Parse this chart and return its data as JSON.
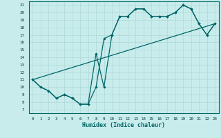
{
  "xlabel": "Humidex (Indice chaleur)",
  "background_color": "#c8ecec",
  "grid_color": "#b0d8d8",
  "line_color": "#006666",
  "xlim": [
    -0.5,
    23.5
  ],
  "ylim": [
    6.5,
    21.5
  ],
  "yticks": [
    7,
    8,
    9,
    10,
    11,
    12,
    13,
    14,
    15,
    16,
    17,
    18,
    19,
    20,
    21
  ],
  "xticks": [
    0,
    1,
    2,
    3,
    4,
    5,
    6,
    7,
    8,
    9,
    10,
    11,
    12,
    13,
    14,
    15,
    16,
    17,
    18,
    19,
    20,
    21,
    22,
    23
  ],
  "line1_x": [
    0,
    1,
    2,
    3,
    4,
    5,
    6,
    7,
    8,
    9,
    10,
    11,
    12,
    13,
    14,
    15,
    16,
    17,
    18,
    19,
    20,
    21,
    22,
    23
  ],
  "line1_y": [
    11.0,
    10.0,
    9.5,
    8.5,
    9.0,
    8.5,
    7.7,
    7.7,
    14.5,
    10.0,
    17.0,
    19.5,
    19.5,
    20.5,
    20.5,
    19.5,
    19.5,
    19.5,
    20.0,
    21.0,
    20.5,
    18.5,
    17.0,
    18.5
  ],
  "line2_x": [
    0,
    1,
    2,
    3,
    4,
    5,
    6,
    7,
    8,
    9,
    10,
    11,
    12,
    13,
    14,
    15,
    16,
    17,
    18,
    19,
    20,
    21,
    22,
    23
  ],
  "line2_y": [
    11.0,
    10.0,
    9.5,
    8.5,
    9.0,
    8.5,
    7.7,
    7.7,
    10.0,
    16.5,
    17.0,
    19.5,
    19.5,
    20.5,
    20.5,
    19.5,
    19.5,
    19.5,
    20.0,
    21.0,
    20.5,
    18.5,
    17.0,
    18.5
  ],
  "line3_x": [
    0,
    23
  ],
  "line3_y": [
    11.0,
    18.5
  ]
}
